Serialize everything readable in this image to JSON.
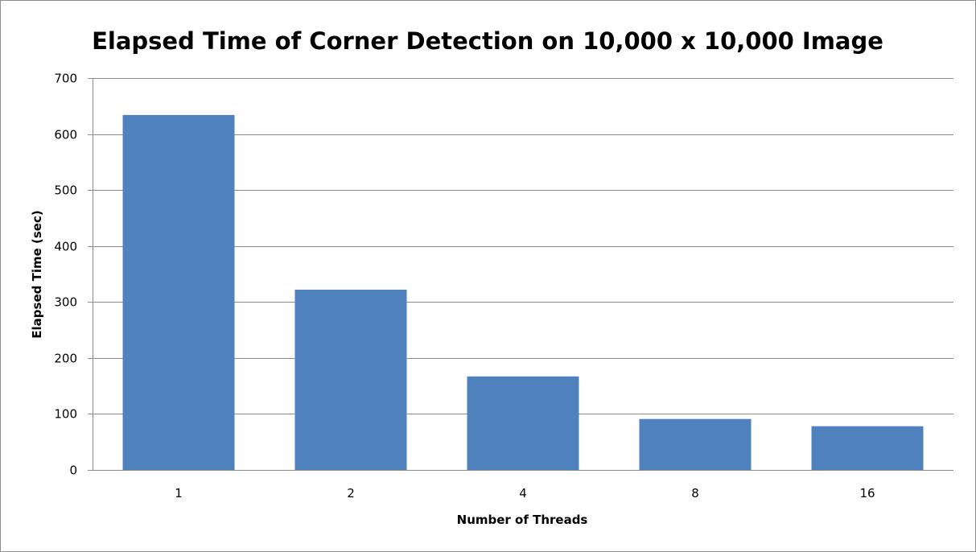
{
  "chart_data": {
    "type": "bar",
    "title": "Elapsed Time of Corner Detection on 10,000 x 10,000 Image",
    "xlabel": "Number of Threads",
    "ylabel": "Elapsed Time (sec)",
    "categories": [
      "1",
      "2",
      "4",
      "8",
      "16"
    ],
    "series": [
      {
        "values": [
          634,
          322,
          167,
          91,
          78
        ]
      }
    ],
    "ylim": [
      0,
      700
    ],
    "yticks": [
      0,
      100,
      200,
      300,
      400,
      500,
      600,
      700
    ],
    "grid": true,
    "legend": "none",
    "colors": {
      "bar": "#4f81bd",
      "grid": "#8c8c8c",
      "axis": "#8c8c8c"
    }
  }
}
